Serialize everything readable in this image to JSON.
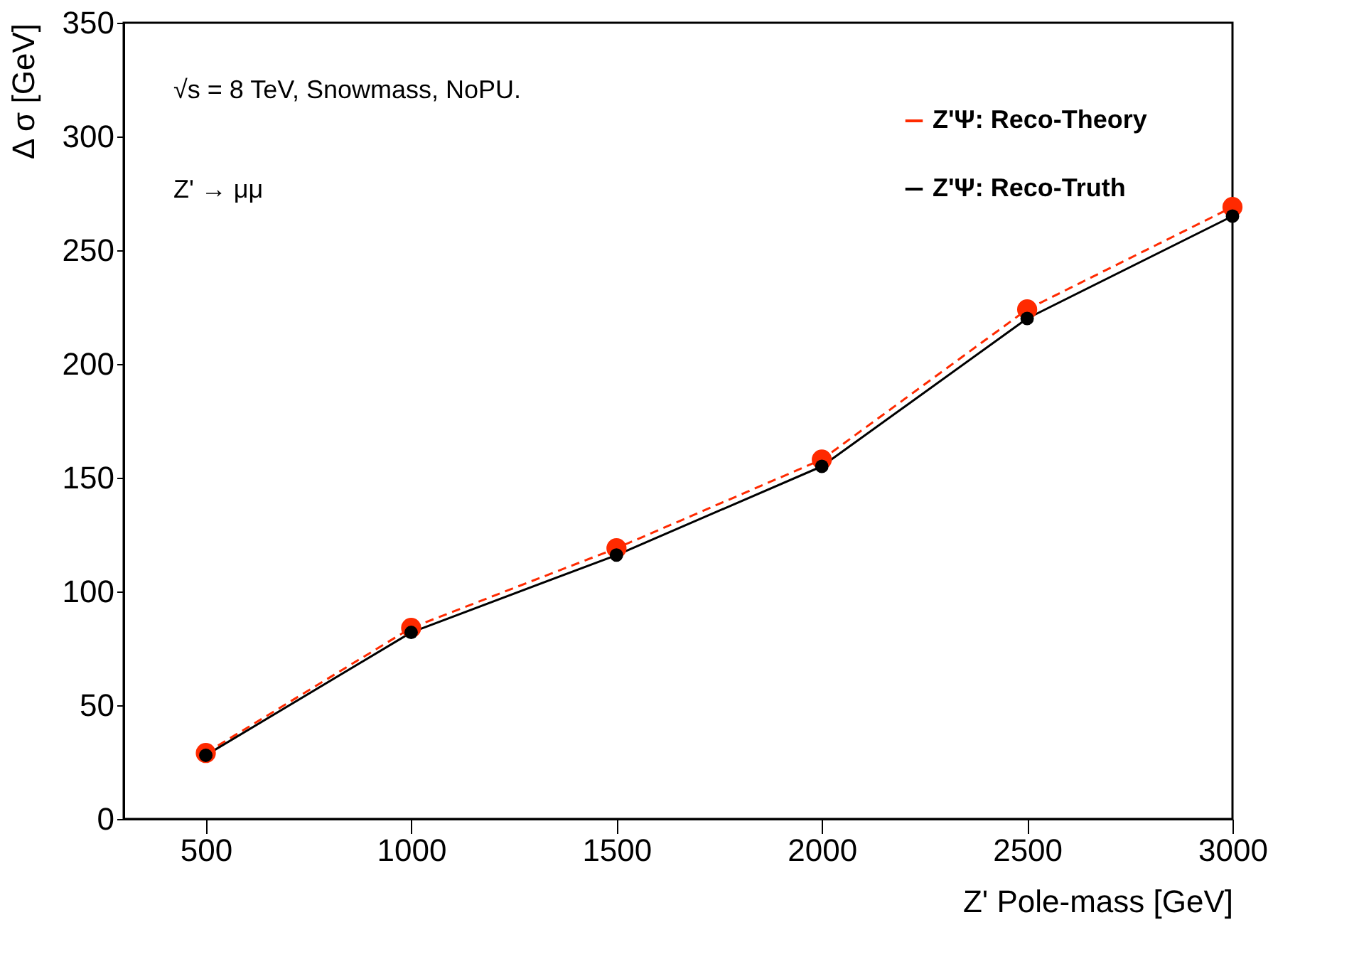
{
  "chart_data": {
    "type": "line",
    "xlabel": "Z' Pole-mass [GeV]",
    "ylabel": "Δ σ [GeV]",
    "x": [
      500,
      1000,
      1500,
      2000,
      2500,
      3000
    ],
    "series": [
      {
        "name": "Z'Ψ: Reco-Theory",
        "color": "#ff2a00",
        "line_style": "dashed",
        "values": [
          29,
          84,
          119,
          158,
          224,
          269
        ]
      },
      {
        "name": "Z'Ψ: Reco-Truth",
        "color": "#000000",
        "line_style": "solid",
        "values": [
          28,
          82,
          116,
          155,
          220,
          265
        ]
      }
    ],
    "xlim": [
      300,
      3000
    ],
    "xticks": [
      500,
      1000,
      1500,
      2000,
      2500,
      3000
    ],
    "ylim": [
      0,
      350
    ],
    "yticks": [
      0,
      50,
      100,
      150,
      200,
      250,
      300,
      350
    ],
    "marker": "circle",
    "grid": false,
    "legend": "top right",
    "annotations": [
      "√s = 8 TeV, Snowmass, NoPU.",
      "Z' → μμ"
    ]
  }
}
